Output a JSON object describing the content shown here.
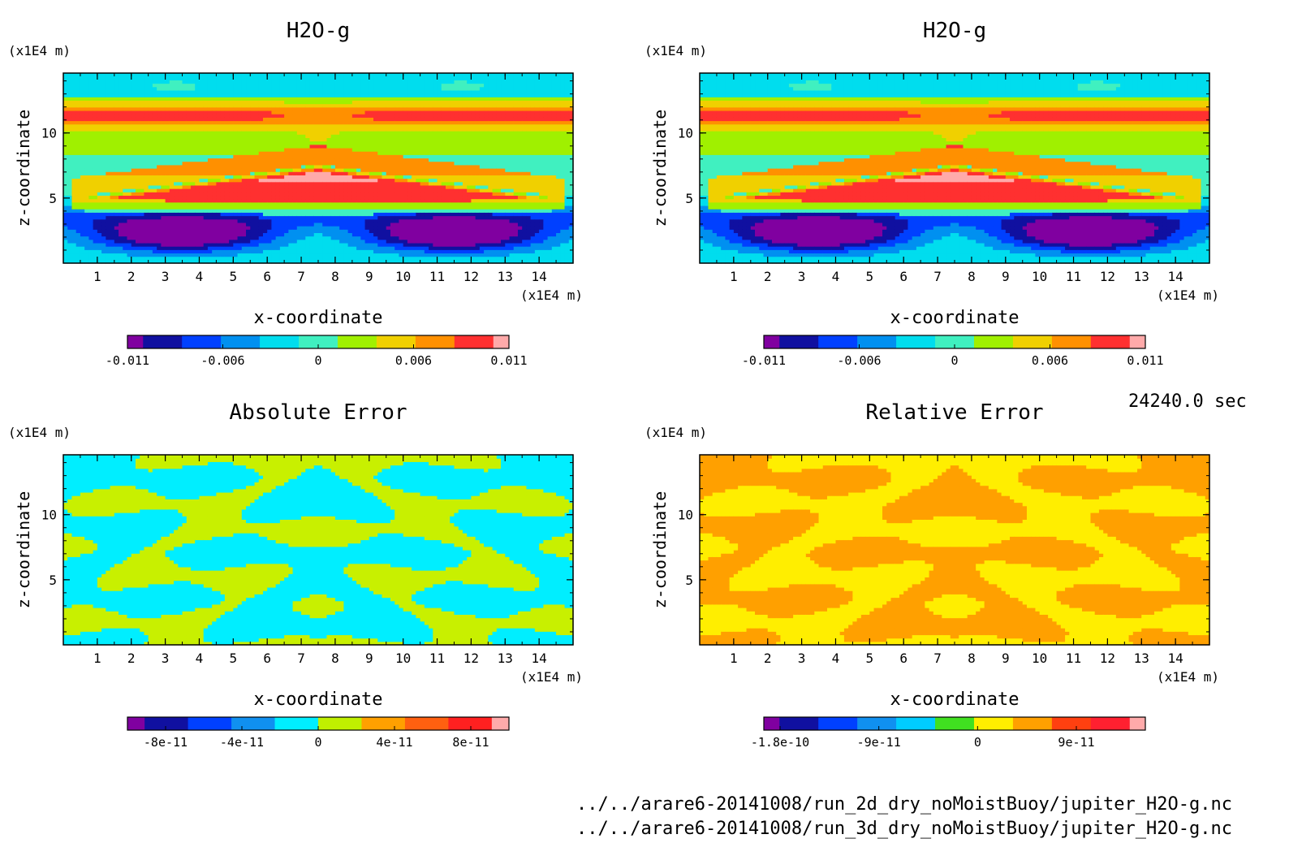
{
  "time_label": "24240.0 sec",
  "file_paths": [
    "../../arare6-20141008/run_2d_dry_noMoistBuoy/jupiter_H2O-g.nc",
    "../../arare6-20141008/run_3d_dry_noMoistBuoy/jupiter_H2O-g.nc"
  ],
  "chart_data": [
    {
      "type": "heatmap",
      "title": "H2O-g",
      "xlabel": "x-coordinate",
      "ylabel": "z-coordinate",
      "x_unit": "(x1E4 m)",
      "y_unit": "(x1E4 m)",
      "xlim": [
        0,
        15
      ],
      "ylim": [
        0,
        14.6
      ],
      "x_ticks": [
        1,
        2,
        3,
        4,
        5,
        6,
        7,
        8,
        9,
        10,
        11,
        12,
        13,
        14
      ],
      "y_ticks": [
        5,
        10
      ],
      "levels": [
        -0.011,
        -0.008,
        -0.006,
        -0.004,
        -0.002,
        0,
        0.002,
        0.004,
        0.006,
        0.008,
        0.011
      ],
      "colorbar_labels": [
        "-0.011",
        "-0.006",
        "0",
        "0.006",
        "0.011"
      ],
      "colors": [
        "#8000a0",
        "#1010a0",
        "#0040ff",
        "#0090f0",
        "#00ddee",
        "#40f0c0",
        "#a0f000",
        "#f0d000",
        "#ff9000",
        "#ff3030",
        "#ffaaaa"
      ]
    },
    {
      "type": "heatmap",
      "title": "H2O-g",
      "xlabel": "x-coordinate",
      "ylabel": "z-coordinate",
      "x_unit": "(x1E4 m)",
      "y_unit": "(x1E4 m)",
      "xlim": [
        0,
        15
      ],
      "ylim": [
        0,
        14.6
      ],
      "x_ticks": [
        1,
        2,
        3,
        4,
        5,
        6,
        7,
        8,
        9,
        10,
        11,
        12,
        13,
        14
      ],
      "y_ticks": [
        5,
        10
      ],
      "levels": [
        -0.011,
        -0.008,
        -0.006,
        -0.004,
        -0.002,
        0,
        0.002,
        0.004,
        0.006,
        0.008,
        0.011
      ],
      "colorbar_labels": [
        "-0.011",
        "-0.006",
        "0",
        "0.006",
        "0.011"
      ],
      "colors": [
        "#8000a0",
        "#1010a0",
        "#0040ff",
        "#0090f0",
        "#00ddee",
        "#40f0c0",
        "#a0f000",
        "#f0d000",
        "#ff9000",
        "#ff3030",
        "#ffaaaa"
      ]
    },
    {
      "type": "heatmap",
      "title": "Absolute Error",
      "xlabel": "x-coordinate",
      "ylabel": "z-coordinate",
      "x_unit": "(x1E4 m)",
      "y_unit": "(x1E4 m)",
      "xlim": [
        0,
        15
      ],
      "ylim": [
        0,
        14.6
      ],
      "x_ticks": [
        1,
        2,
        3,
        4,
        5,
        6,
        7,
        8,
        9,
        10,
        11,
        12,
        13,
        14
      ],
      "y_ticks": [
        5,
        10
      ],
      "colorbar_labels": [
        "-8e-11",
        "-4e-11",
        "0",
        "4e-11",
        "8e-11"
      ],
      "colors": [
        "#8000a0",
        "#1010a0",
        "#0040ff",
        "#1090f0",
        "#00eeff",
        "#c0f000",
        "#ffa000",
        "#ff6010",
        "#ff2020",
        "#ffaaaa"
      ]
    },
    {
      "type": "heatmap",
      "title": "Relative Error",
      "xlabel": "x-coordinate",
      "ylabel": "z-coordinate",
      "x_unit": "(x1E4 m)",
      "y_unit": "(x1E4 m)",
      "xlim": [
        0,
        15
      ],
      "ylim": [
        0,
        14.6
      ],
      "x_ticks": [
        1,
        2,
        3,
        4,
        5,
        6,
        7,
        8,
        9,
        10,
        11,
        12,
        13,
        14
      ],
      "y_ticks": [
        5,
        10
      ],
      "colorbar_labels": [
        "-1.8e-10",
        "-9e-11",
        "0",
        "9e-11"
      ],
      "colors": [
        "#8000a0",
        "#1010a0",
        "#0040ff",
        "#1090f0",
        "#00ccff",
        "#40e020",
        "#ffee00",
        "#ffa000",
        "#ff4010",
        "#ff2030",
        "#ffaaaa"
      ]
    }
  ]
}
